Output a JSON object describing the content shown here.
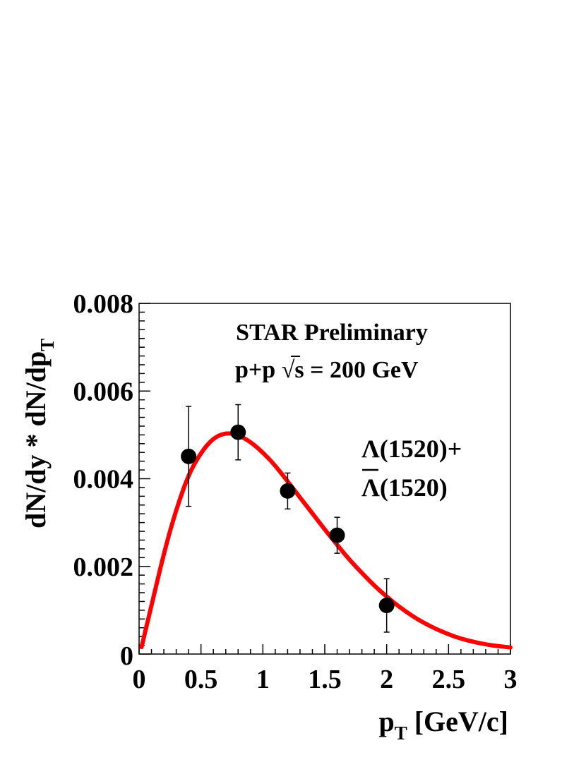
{
  "chart_data": {
    "type": "scatter",
    "title": "",
    "annotations": {
      "line1": "STAR Preliminary",
      "line2_prefix": "p+p ",
      "line2_radical": "√",
      "line2_var": "s",
      "line2_suffix": " = 200 GeV",
      "particle_line1": "Λ(1520)+",
      "particle_line2_bar": "Λ",
      "particle_line2_rest": "(1520)"
    },
    "xlabel": {
      "main": "p",
      "sub": "T",
      "rest": " [GeV/c]"
    },
    "ylabel": {
      "main": "dN/dy * dN/dp",
      "sub": "T"
    },
    "xlim": [
      0,
      3
    ],
    "ylim": [
      0,
      0.008
    ],
    "x_ticks": [
      {
        "value": 0,
        "label": "0"
      },
      {
        "value": 0.5,
        "label": "0.5"
      },
      {
        "value": 1,
        "label": "1"
      },
      {
        "value": 1.5,
        "label": "1.5"
      },
      {
        "value": 2,
        "label": "2"
      },
      {
        "value": 2.5,
        "label": "2.5"
      },
      {
        "value": 3,
        "label": "3"
      }
    ],
    "y_ticks": [
      {
        "value": 0,
        "label": "0"
      },
      {
        "value": 0.002,
        "label": "0.002"
      },
      {
        "value": 0.004,
        "label": "0.004"
      },
      {
        "value": 0.006,
        "label": "0.006"
      },
      {
        "value": 0.008,
        "label": "0.008"
      }
    ],
    "grid": false,
    "series": [
      {
        "kind": "points",
        "color": "#000000",
        "points": [
          {
            "x": 0.4,
            "y": 0.00451,
            "err_low": 0.00114,
            "err_high": 0.00114
          },
          {
            "x": 0.8,
            "y": 0.00506,
            "err_low": 0.00063,
            "err_high": 0.00063
          },
          {
            "x": 1.2,
            "y": 0.00372,
            "err_low": 0.00041,
            "err_high": 0.00041
          },
          {
            "x": 1.6,
            "y": 0.00271,
            "err_low": 0.00041,
            "err_high": 0.00041
          },
          {
            "x": 2.0,
            "y": 0.00111,
            "err_low": 0.00061,
            "err_high": 0.00061
          }
        ]
      },
      {
        "kind": "fit-curve",
        "color": "#ff0000",
        "x": [
          0.02,
          0.1,
          0.2,
          0.3,
          0.4,
          0.5,
          0.6,
          0.7,
          0.8,
          0.9,
          1.0,
          1.1,
          1.2,
          1.3,
          1.4,
          1.5,
          1.6,
          1.7,
          1.8,
          1.9,
          2.0,
          2.1,
          2.2,
          2.3,
          2.4,
          2.5,
          2.6,
          2.7,
          2.8,
          2.9,
          3.0
        ],
        "y": [
          0.00016,
          0.0011,
          0.0023,
          0.0033,
          0.0041,
          0.0046,
          0.00493,
          0.00505,
          0.005,
          0.00484,
          0.0046,
          0.0043,
          0.00394,
          0.00357,
          0.00321,
          0.00284,
          0.00249,
          0.00215,
          0.00185,
          0.00156,
          0.00131,
          0.00108,
          0.00088,
          0.00071,
          0.00057,
          0.00045,
          0.00035,
          0.00028,
          0.00022,
          0.00018,
          0.00015
        ]
      }
    ]
  }
}
